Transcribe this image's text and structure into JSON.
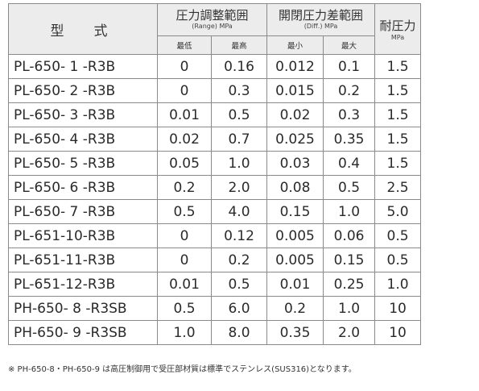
{
  "headers": {
    "model": "型　式",
    "range_title": "圧力調整範囲",
    "range_unit": "(Range) MPa",
    "range_min": "最低",
    "range_max": "最高",
    "diff_title": "開閉圧力差範囲",
    "diff_unit": "(Diff.) MPa",
    "diff_min": "最小",
    "diff_max": "最大",
    "tolerance_title": "耐圧力",
    "tolerance_unit": "MPa"
  },
  "rows": [
    {
      "model": "PL-650- 1 -R3B",
      "range_min": "0",
      "range_max": "0.16",
      "diff_min": "0.012",
      "diff_max": "0.1",
      "tolerance": "1.5"
    },
    {
      "model": "PL-650- 2 -R3B",
      "range_min": "0",
      "range_max": "0.3",
      "diff_min": "0.015",
      "diff_max": "0.2",
      "tolerance": "1.5"
    },
    {
      "model": "PL-650- 3 -R3B",
      "range_min": "0.01",
      "range_max": "0.5",
      "diff_min": "0.02",
      "diff_max": "0.3",
      "tolerance": "1.5"
    },
    {
      "model": "PL-650- 4 -R3B",
      "range_min": "0.02",
      "range_max": "0.7",
      "diff_min": "0.025",
      "diff_max": "0.35",
      "tolerance": "1.5"
    },
    {
      "model": "PL-650- 5 -R3B",
      "range_min": "0.05",
      "range_max": "1.0",
      "diff_min": "0.03",
      "diff_max": "0.4",
      "tolerance": "1.5"
    },
    {
      "model": "PL-650- 6 -R3B",
      "range_min": "0.2",
      "range_max": "2.0",
      "diff_min": "0.08",
      "diff_max": "0.5",
      "tolerance": "2.5"
    },
    {
      "model": "PL-650- 7 -R3B",
      "range_min": "0.5",
      "range_max": "4.0",
      "diff_min": "0.15",
      "diff_max": "1.0",
      "tolerance": "5.0"
    },
    {
      "model": "PL-651-10-R3B",
      "range_min": "0",
      "range_max": "0.12",
      "diff_min": "0.005",
      "diff_max": "0.06",
      "tolerance": "0.5"
    },
    {
      "model": "PL-651-11-R3B",
      "range_min": "0",
      "range_max": "0.2",
      "diff_min": "0.005",
      "diff_max": "0.15",
      "tolerance": "0.5"
    },
    {
      "model": "PL-651-12-R3B",
      "range_min": "0.01",
      "range_max": "0.5",
      "diff_min": "0.01",
      "diff_max": "0.25",
      "tolerance": "1.0"
    },
    {
      "model": "PH-650- 8 -R3SB",
      "range_min": "0.5",
      "range_max": "6.0",
      "diff_min": "0.2",
      "diff_max": "1.0",
      "tolerance": "10"
    },
    {
      "model": "PH-650- 9 -R3SB",
      "range_min": "1.0",
      "range_max": "8.0",
      "diff_min": "0.35",
      "diff_max": "2.0",
      "tolerance": "10"
    }
  ],
  "footnote": "※ PH-650-8・PH-650-9 は高圧制御用で受圧部材質は標準でステンレス(SUS316)となります。"
}
